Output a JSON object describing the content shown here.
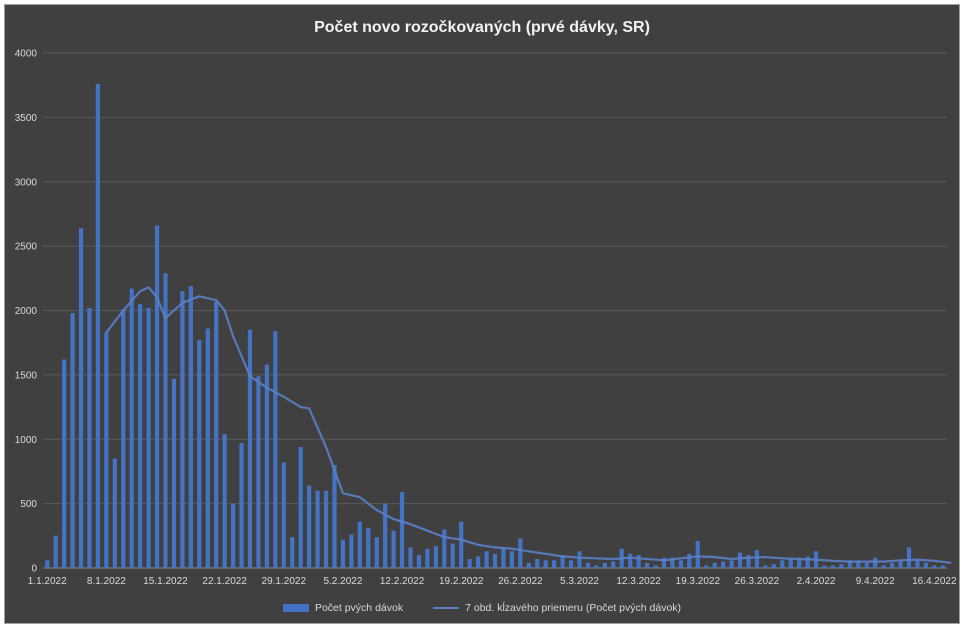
{
  "chart_data": {
    "type": "bar",
    "title": "Počet  novo rozočkovaných (prvé dávky, SR)",
    "xlabel": "",
    "ylabel": "",
    "ylim": [
      0,
      4000
    ],
    "yticks": [
      0,
      500,
      1000,
      1500,
      2000,
      2500,
      3000,
      3500,
      4000
    ],
    "grid": true,
    "legend_position": "bottom",
    "x_tick_labels": [
      {
        "label": "1.1.2022",
        "day": 1
      },
      {
        "label": "8.1.2022",
        "day": 8
      },
      {
        "label": "15.1.2022",
        "day": 15
      },
      {
        "label": "22.1.2022",
        "day": 22
      },
      {
        "label": "29.1.2022",
        "day": 29
      },
      {
        "label": "5.2.2022",
        "day": 36
      },
      {
        "label": "12.2.2022",
        "day": 43
      },
      {
        "label": "19.2.2022",
        "day": 50
      },
      {
        "label": "26.2.2022",
        "day": 57
      },
      {
        "label": "5.3.2022",
        "day": 64
      },
      {
        "label": "12.3.2022",
        "day": 71
      },
      {
        "label": "19.3.2022",
        "day": 78
      },
      {
        "label": "26.3.2022",
        "day": 85
      },
      {
        "label": "2.4.2022",
        "day": 92
      },
      {
        "label": "9.4.2022",
        "day": 99
      },
      {
        "label": "16.4.2022",
        "day": 106
      }
    ],
    "series": [
      {
        "name": "Počet pvých dávok",
        "type": "bar",
        "color": "#4472c4",
        "values": [
          60,
          250,
          1620,
          1980,
          2640,
          2020,
          3760,
          1830,
          850,
          2010,
          2170,
          2050,
          2020,
          2660,
          2290,
          1470,
          2150,
          2190,
          1770,
          1860,
          2070,
          1040,
          500,
          970,
          1850,
          1490,
          1580,
          1840,
          820,
          240,
          940,
          640,
          600,
          600,
          800,
          220,
          260,
          360,
          310,
          240,
          500,
          290,
          590,
          160,
          100,
          150,
          170,
          300,
          190,
          360,
          70,
          90,
          130,
          110,
          150,
          130,
          230,
          40,
          70,
          60,
          60,
          100,
          60,
          130,
          40,
          20,
          40,
          50,
          150,
          110,
          100,
          40,
          20,
          80,
          80,
          60,
          110,
          210,
          20,
          40,
          50,
          60,
          120,
          100,
          140,
          20,
          30,
          60,
          70,
          80,
          90,
          130,
          20,
          20,
          30,
          60,
          60,
          40,
          80,
          20,
          40,
          50,
          160,
          60,
          40,
          20,
          20
        ]
      },
      {
        "name": "7 obd. kĺzavého priemeru (Počet pvých dávok)",
        "type": "line",
        "color": "#5b7fc7",
        "points": [
          [
            8,
            1830
          ],
          [
            10,
            2000
          ],
          [
            12,
            2150
          ],
          [
            13,
            2180
          ],
          [
            14,
            2100
          ],
          [
            15,
            1940
          ],
          [
            17,
            2060
          ],
          [
            19,
            2110
          ],
          [
            21,
            2080
          ],
          [
            22,
            2000
          ],
          [
            23,
            1800
          ],
          [
            25,
            1490
          ],
          [
            27,
            1400
          ],
          [
            29,
            1330
          ],
          [
            31,
            1250
          ],
          [
            32,
            1240
          ],
          [
            34,
            940
          ],
          [
            36,
            580
          ],
          [
            38,
            550
          ],
          [
            40,
            450
          ],
          [
            42,
            380
          ],
          [
            44,
            340
          ],
          [
            46,
            290
          ],
          [
            48,
            240
          ],
          [
            50,
            220
          ],
          [
            52,
            180
          ],
          [
            54,
            160
          ],
          [
            56,
            150
          ],
          [
            58,
            130
          ],
          [
            60,
            110
          ],
          [
            62,
            90
          ],
          [
            64,
            80
          ],
          [
            66,
            75
          ],
          [
            68,
            70
          ],
          [
            70,
            80
          ],
          [
            72,
            70
          ],
          [
            74,
            60
          ],
          [
            76,
            75
          ],
          [
            78,
            90
          ],
          [
            80,
            85
          ],
          [
            82,
            70
          ],
          [
            84,
            80
          ],
          [
            86,
            85
          ],
          [
            88,
            75
          ],
          [
            90,
            70
          ],
          [
            92,
            65
          ],
          [
            94,
            55
          ],
          [
            96,
            50
          ],
          [
            98,
            50
          ],
          [
            100,
            50
          ],
          [
            102,
            60
          ],
          [
            104,
            65
          ],
          [
            106,
            55
          ],
          [
            108,
            40
          ]
        ]
      }
    ]
  }
}
